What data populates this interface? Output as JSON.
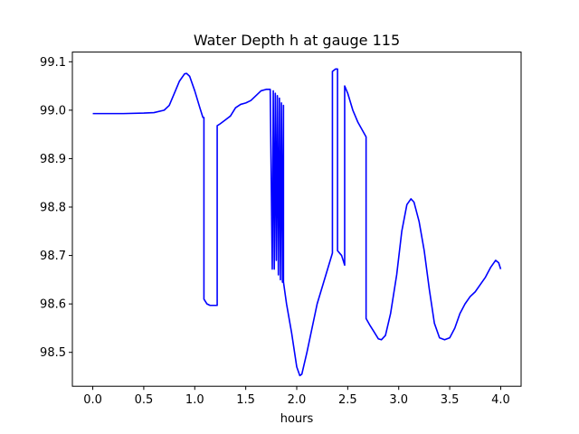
{
  "chart_data": {
    "type": "line",
    "title": "Water Depth h at gauge 115",
    "xlabel": "hours",
    "ylabel": "",
    "xlim": [
      -0.2,
      4.2
    ],
    "ylim": [
      98.43,
      99.12
    ],
    "xticks": [
      0.0,
      0.5,
      1.0,
      1.5,
      2.0,
      2.5,
      3.0,
      3.5,
      4.0
    ],
    "xtick_labels": [
      "0.0",
      "0.5",
      "1.0",
      "1.5",
      "2.0",
      "2.5",
      "3.0",
      "3.5",
      "4.0"
    ],
    "yticks": [
      98.5,
      98.6,
      98.7,
      98.8,
      98.9,
      99.0,
      99.1
    ],
    "ytick_labels": [
      "98.5",
      "98.6",
      "98.7",
      "98.8",
      "98.9",
      "99.0",
      "99.1"
    ],
    "grid": false,
    "series": [
      {
        "color": "#0000ff",
        "points": [
          [
            0.0,
            98.993
          ],
          [
            0.3,
            98.993
          ],
          [
            0.5,
            98.994
          ],
          [
            0.6,
            98.995
          ],
          [
            0.7,
            99.0
          ],
          [
            0.75,
            99.01
          ],
          [
            0.8,
            99.035
          ],
          [
            0.85,
            99.06
          ],
          [
            0.9,
            99.075
          ],
          [
            0.92,
            99.076
          ],
          [
            0.95,
            99.07
          ],
          [
            1.0,
            99.04
          ],
          [
            1.05,
            99.005
          ],
          [
            1.08,
            98.985
          ],
          [
            1.09,
            98.985
          ],
          [
            1.09,
            98.61
          ],
          [
            1.12,
            98.6
          ],
          [
            1.15,
            98.597
          ],
          [
            1.22,
            98.597
          ],
          [
            1.22,
            98.968
          ],
          [
            1.25,
            98.972
          ],
          [
            1.3,
            98.98
          ],
          [
            1.35,
            98.988
          ],
          [
            1.4,
            99.005
          ],
          [
            1.45,
            99.012
          ],
          [
            1.5,
            99.015
          ],
          [
            1.55,
            99.02
          ],
          [
            1.6,
            99.03
          ],
          [
            1.65,
            99.04
          ],
          [
            1.7,
            99.043
          ],
          [
            1.74,
            99.043
          ],
          [
            1.76,
            98.672
          ],
          [
            1.77,
            99.04
          ],
          [
            1.78,
            98.672
          ],
          [
            1.79,
            99.035
          ],
          [
            1.8,
            98.69
          ],
          [
            1.81,
            99.03
          ],
          [
            1.82,
            98.66
          ],
          [
            1.83,
            99.025
          ],
          [
            1.84,
            98.65
          ],
          [
            1.85,
            99.015
          ],
          [
            1.86,
            98.645
          ],
          [
            1.87,
            99.01
          ],
          [
            1.87,
            98.645
          ],
          [
            1.9,
            98.6
          ],
          [
            1.95,
            98.54
          ],
          [
            2.0,
            98.47
          ],
          [
            2.03,
            98.452
          ],
          [
            2.05,
            98.455
          ],
          [
            2.1,
            98.5
          ],
          [
            2.2,
            98.6
          ],
          [
            2.3,
            98.67
          ],
          [
            2.35,
            98.705
          ],
          [
            2.35,
            99.08
          ],
          [
            2.38,
            99.085
          ],
          [
            2.4,
            99.085
          ],
          [
            2.4,
            98.71
          ],
          [
            2.44,
            98.7
          ],
          [
            2.47,
            98.68
          ],
          [
            2.47,
            99.05
          ],
          [
            2.5,
            99.035
          ],
          [
            2.55,
            99.0
          ],
          [
            2.6,
            98.975
          ],
          [
            2.68,
            98.945
          ],
          [
            2.68,
            98.57
          ],
          [
            2.72,
            98.555
          ],
          [
            2.75,
            98.545
          ],
          [
            2.8,
            98.528
          ],
          [
            2.83,
            98.526
          ],
          [
            2.87,
            98.535
          ],
          [
            2.92,
            98.58
          ],
          [
            2.98,
            98.66
          ],
          [
            3.03,
            98.75
          ],
          [
            3.08,
            98.805
          ],
          [
            3.12,
            98.817
          ],
          [
            3.15,
            98.81
          ],
          [
            3.2,
            98.77
          ],
          [
            3.25,
            98.71
          ],
          [
            3.3,
            98.63
          ],
          [
            3.35,
            98.56
          ],
          [
            3.4,
            98.53
          ],
          [
            3.45,
            98.526
          ],
          [
            3.5,
            98.53
          ],
          [
            3.55,
            98.55
          ],
          [
            3.6,
            98.58
          ],
          [
            3.65,
            98.6
          ],
          [
            3.7,
            98.615
          ],
          [
            3.75,
            98.625
          ],
          [
            3.8,
            98.64
          ],
          [
            3.85,
            98.655
          ],
          [
            3.9,
            98.675
          ],
          [
            3.95,
            98.69
          ],
          [
            3.98,
            98.685
          ],
          [
            4.0,
            98.672
          ]
        ]
      }
    ]
  }
}
